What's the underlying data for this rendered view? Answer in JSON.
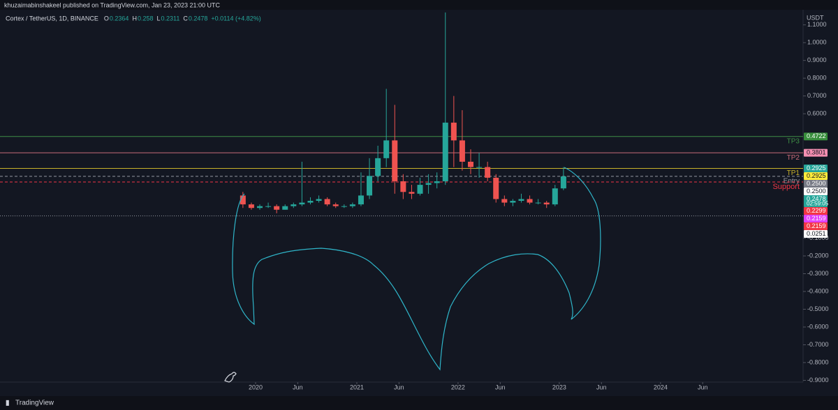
{
  "banner": "khuzaimabinshakeel published on TradingView.com, Jan 23, 2023 21:00 UTC",
  "footer": "TradingView",
  "chart_data": {
    "type": "candlestick",
    "title": "Cortex / TetherUS, 1D, BINANCE",
    "legend_fields": [
      {
        "key": "O",
        "value": 0.2364
      },
      {
        "key": "H",
        "value": 0.258
      },
      {
        "key": "L",
        "value": 0.2311
      },
      {
        "key": "C",
        "value": 0.2478
      }
    ],
    "change": "+0.0114 (+4.82%)",
    "axis_unit": "USDT",
    "up_color": "#26a69a",
    "down_color": "#ef5350",
    "x": [
      "2019-11",
      "2019-12",
      "2020-01",
      "2020-02",
      "2020-03",
      "2020-04",
      "2020-05",
      "2020-06",
      "2020-07",
      "2020-08",
      "2020-09",
      "2020-10",
      "2020-11",
      "2020-12",
      "2021-01",
      "2021-02",
      "2021-03",
      "2021-04",
      "2021-05",
      "2021-06",
      "2021-07",
      "2021-08",
      "2021-09",
      "2021-10",
      "2021-11",
      "2021-12",
      "2022-01",
      "2022-02",
      "2022-03",
      "2022-04",
      "2022-05",
      "2022-06",
      "2022-07",
      "2022-08",
      "2022-09",
      "2022-10",
      "2022-11",
      "2022-12",
      "2023-01"
    ],
    "open": [
      0.14,
      0.09,
      0.07,
      0.08,
      0.08,
      0.06,
      0.08,
      0.09,
      0.1,
      0.11,
      0.12,
      0.09,
      0.08,
      0.08,
      0.09,
      0.14,
      0.25,
      0.35,
      0.45,
      0.22,
      0.16,
      0.15,
      0.2,
      0.21,
      0.22,
      0.55,
      0.45,
      0.33,
      0.3,
      0.3,
      0.24,
      0.12,
      0.1,
      0.11,
      0.12,
      0.1,
      0.1,
      0.09,
      0.18
    ],
    "high": [
      0.16,
      0.1,
      0.09,
      0.1,
      0.09,
      0.09,
      0.1,
      0.33,
      0.13,
      0.14,
      0.13,
      0.1,
      0.09,
      0.1,
      0.27,
      0.35,
      0.42,
      0.74,
      0.65,
      0.26,
      0.2,
      0.24,
      0.26,
      0.27,
      1.17,
      0.7,
      0.62,
      0.4,
      0.38,
      0.33,
      0.26,
      0.14,
      0.12,
      0.15,
      0.14,
      0.12,
      0.11,
      0.2,
      0.3
    ],
    "low": [
      0.07,
      0.06,
      0.06,
      0.07,
      0.04,
      0.06,
      0.07,
      0.08,
      0.09,
      0.1,
      0.08,
      0.07,
      0.07,
      0.07,
      0.08,
      0.12,
      0.22,
      0.3,
      0.15,
      0.12,
      0.12,
      0.14,
      0.15,
      0.18,
      0.2,
      0.3,
      0.28,
      0.26,
      0.24,
      0.22,
      0.1,
      0.08,
      0.08,
      0.1,
      0.09,
      0.09,
      0.07,
      0.08,
      0.17
    ],
    "close": [
      0.09,
      0.07,
      0.08,
      0.08,
      0.06,
      0.08,
      0.09,
      0.1,
      0.11,
      0.12,
      0.09,
      0.08,
      0.08,
      0.09,
      0.14,
      0.25,
      0.35,
      0.45,
      0.22,
      0.16,
      0.15,
      0.2,
      0.21,
      0.22,
      0.55,
      0.45,
      0.33,
      0.3,
      0.3,
      0.24,
      0.12,
      0.1,
      0.11,
      0.12,
      0.1,
      0.1,
      0.09,
      0.18,
      0.2478
    ],
    "ylim": [
      -0.91,
      1.24
    ],
    "yticks": [
      {
        "value": 1.1,
        "label": "1.1000"
      },
      {
        "value": 1.0,
        "label": "1.0000"
      },
      {
        "value": 0.9,
        "label": "0.9000"
      },
      {
        "value": 0.8,
        "label": "0.8000"
      },
      {
        "value": 0.7,
        "label": "0.7000"
      },
      {
        "value": 0.6,
        "label": "0.6000"
      },
      {
        "value": -0.1,
        "label": "-0.1000"
      },
      {
        "value": -0.2,
        "label": "-0.2000"
      },
      {
        "value": -0.3,
        "label": "-0.3000"
      },
      {
        "value": -0.4,
        "label": "-0.4000"
      },
      {
        "value": -0.5,
        "label": "-0.5000"
      },
      {
        "value": -0.6,
        "label": "-0.6000"
      },
      {
        "value": -0.7,
        "label": "-0.7000"
      },
      {
        "value": -0.8,
        "label": "-0.8000"
      },
      {
        "value": -0.9,
        "label": "-0.9000"
      }
    ],
    "xticks": [
      {
        "value": "2020-01",
        "label": "2020"
      },
      {
        "value": "2020-06",
        "label": "Jun"
      },
      {
        "value": "2021-01",
        "label": "2021"
      },
      {
        "value": "2021-06",
        "label": "Jun"
      },
      {
        "value": "2022-01",
        "label": "2022"
      },
      {
        "value": "2022-06",
        "label": "Jun"
      },
      {
        "value": "2023-01",
        "label": "2023"
      },
      {
        "value": "2023-06",
        "label": "Jun"
      },
      {
        "value": "2024-01",
        "label": "2024"
      },
      {
        "value": "2024-06",
        "label": "Jun"
      }
    ],
    "levels": [
      {
        "label": "TP3",
        "value": 0.4722,
        "color": "#3f8f46",
        "style": "solid"
      },
      {
        "label": "TP2",
        "value": 0.3801,
        "color": "#c96b78",
        "style": "solid"
      },
      {
        "label": "TP1",
        "value": 0.2925,
        "color": "#c9b22a",
        "style": "solid"
      },
      {
        "label": "Entry",
        "value": 0.2478,
        "color": "#9598a1",
        "style": "dashed"
      },
      {
        "label": "Support",
        "value": 0.2159,
        "color": "#f23645",
        "style": "dashed"
      },
      {
        "value": 0.0251,
        "color": "#9598a1",
        "style": "dotted"
      }
    ],
    "price_tags": [
      {
        "value": 0.4722,
        "label": "0.4722",
        "color": "#388e3c"
      },
      {
        "value": 0.3801,
        "label": "0.3801",
        "color": "#f48fb1"
      },
      {
        "value": 0.2925,
        "label": "0.2925",
        "color": "#26a69a"
      },
      {
        "value": 0.2925,
        "label": "0.2925",
        "color": "#ffeb3b"
      },
      {
        "value": 0.25,
        "label": "0.2500",
        "color": "#787b86"
      },
      {
        "value": 0.25,
        "label": "0.2500",
        "color": "#ffffff"
      },
      {
        "value": 0.2478,
        "label": "0.2478",
        "color": "#26a69a",
        "countdown": "02:59:05"
      },
      {
        "value": 0.2299,
        "label": "0.2299",
        "color": "#f23645"
      },
      {
        "value": 0.2159,
        "label": "0.2159",
        "color": "#e040fb"
      },
      {
        "value": 0.2159,
        "label": "0.2159",
        "color": "#f23645"
      },
      {
        "value": 0.0251,
        "label": "0.0251",
        "color": "#ffffff"
      }
    ]
  }
}
